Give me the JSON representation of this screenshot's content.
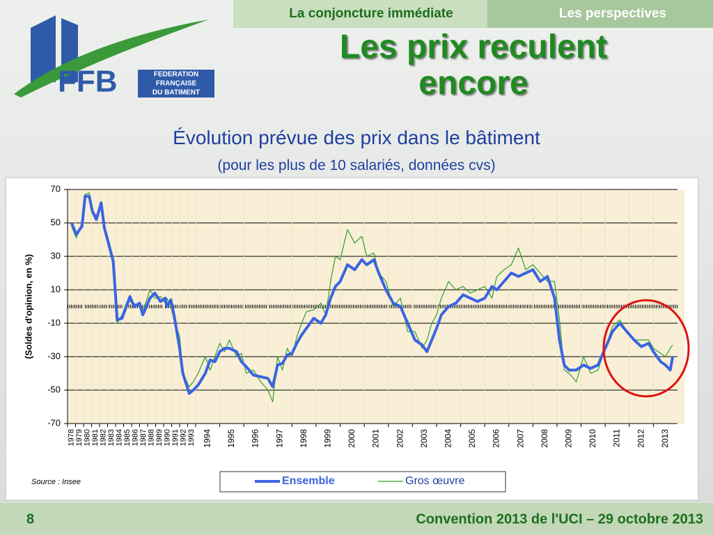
{
  "nav": {
    "current": "La conjoncture immédiate",
    "next": "Les perspectives"
  },
  "logo": {
    "acronym": "FFB",
    "lines": [
      "FEDERATION",
      "FRANÇAISE",
      "DU BATIMENT"
    ]
  },
  "slide_title": "Les prix reculent encore",
  "footer": {
    "page": "8",
    "event": "Convention 2013 de l'UCI – 29 octobre 2013"
  },
  "chart_data": {
    "type": "line",
    "title": "Évolution prévue des prix dans le bâtiment",
    "subtitle": "(pour les plus de 10 salariés, données cvs)",
    "y_label": "(Soldes d'opinion, en %)",
    "source": "Source : Insee",
    "xlim": [
      1978,
      2014
    ],
    "xticks": [
      1978,
      1979,
      1980,
      1981,
      1982,
      1983,
      1984,
      1985,
      1986,
      1987,
      1988,
      1989,
      1990,
      1991,
      1992,
      1993,
      1994,
      1995,
      1996,
      1997,
      1998,
      1999,
      2000,
      2001,
      2002,
      2003,
      2004,
      2005,
      2006,
      2007,
      2008,
      2009,
      2010,
      2011,
      2012,
      2013
    ],
    "ylim": [
      -70,
      70
    ],
    "yticks": [
      -70,
      -50,
      -30,
      -10,
      10,
      30,
      50,
      70
    ],
    "grid": true,
    "x": [
      1978.5,
      1979.1,
      1979.8,
      1980.2,
      1980.7,
      1981.1,
      1981.6,
      1982.2,
      1982.6,
      1983.0,
      1983.7,
      1984.2,
      1984.8,
      1985.5,
      1985.8,
      1986.3,
      1987.0,
      1987.4,
      1988.3,
      1988.9,
      1989.6,
      1990.2,
      1990.4,
      1990.9,
      1991.3,
      1992.0,
      1992.4,
      1993.2,
      1993.7,
      1994.1,
      1994.4,
      1994.6,
      1994.8,
      1995.0,
      1995.2,
      1995.4,
      1995.7,
      1995.9,
      1996.1,
      1996.4,
      1996.7,
      1997.0,
      1997.2,
      1997.4,
      1997.6,
      1997.8,
      1998.0,
      1998.2,
      1998.4,
      1998.6,
      1998.9,
      1999.2,
      1999.4,
      1999.6,
      1999.8,
      2000.0,
      2000.3,
      2000.6,
      2000.9,
      2001.1,
      2001.4,
      2001.6,
      2001.9,
      2002.2,
      2002.5,
      2002.8,
      2003.1,
      2003.4,
      2003.6,
      2003.8,
      2004.0,
      2004.2,
      2004.5,
      2004.8,
      2005.1,
      2005.4,
      2005.7,
      2006.0,
      2006.3,
      2006.5,
      2006.8,
      2007.1,
      2007.4,
      2007.7,
      2008.0,
      2008.3,
      2008.6,
      2008.9,
      2009.1,
      2009.3,
      2009.5,
      2009.8,
      2010.1,
      2010.4,
      2010.7,
      2011.0,
      2011.3,
      2011.6,
      2011.9,
      2012.2,
      2012.5,
      2012.8,
      2013.0,
      2013.3,
      2013.5,
      2013.7,
      2013.8
    ],
    "series": [
      {
        "name": "Ensemble",
        "color": "#3a64e0",
        "width": 4,
        "values": [
          50,
          43,
          48,
          66,
          66,
          57,
          52,
          62,
          47,
          40,
          27,
          -8,
          -7,
          2,
          6,
          0,
          2,
          -5,
          5,
          8,
          3,
          5,
          0,
          4,
          -5,
          -25,
          -40,
          -52,
          -50,
          -47,
          -40,
          -32,
          -33,
          -27,
          -25,
          -25,
          -27,
          -33,
          -36,
          -41,
          -42,
          -43,
          -48,
          -35,
          -34,
          -29,
          -28,
          -22,
          -17,
          -13,
          -7,
          -10,
          -5,
          5,
          12,
          15,
          25,
          22,
          28,
          25,
          28,
          20,
          10,
          2,
          0,
          -10,
          -20,
          -23,
          -27,
          -20,
          -13,
          -5,
          0,
          2,
          7,
          5,
          3,
          5,
          12,
          10,
          15,
          20,
          18,
          20,
          22,
          15,
          18,
          5,
          -20,
          -35,
          -38,
          -38,
          -35,
          -37,
          -35,
          -25,
          -15,
          -10,
          -15,
          -20,
          -24,
          -22,
          -27,
          -33,
          -35,
          -38,
          -30
        ]
      },
      {
        "name": "Gros œuvre",
        "color": "#2e9e2e",
        "width": 1.2,
        "values": [
          48,
          41,
          50,
          67,
          68,
          58,
          54,
          60,
          45,
          38,
          30,
          -10,
          -5,
          4,
          3,
          2,
          0,
          -3,
          10,
          5,
          6,
          2,
          5,
          0,
          -8,
          -18,
          -40,
          -48,
          -45,
          -40,
          -30,
          -38,
          -30,
          -22,
          -27,
          -20,
          -30,
          -28,
          -40,
          -38,
          -45,
          -50,
          -57,
          -30,
          -38,
          -25,
          -30,
          -18,
          -10,
          -3,
          -2,
          2,
          -5,
          15,
          30,
          28,
          46,
          38,
          42,
          30,
          32,
          20,
          15,
          0,
          5,
          -15,
          -15,
          -25,
          -20,
          -10,
          -5,
          5,
          15,
          10,
          12,
          8,
          10,
          12,
          5,
          18,
          22,
          25,
          35,
          22,
          25,
          20,
          15,
          15,
          -8,
          -38,
          -40,
          -45,
          -30,
          -40,
          -38,
          -25,
          -12,
          -8,
          -15,
          -20,
          -20,
          -20,
          -25,
          -28,
          -30,
          -25,
          -23
        ]
      }
    ]
  }
}
